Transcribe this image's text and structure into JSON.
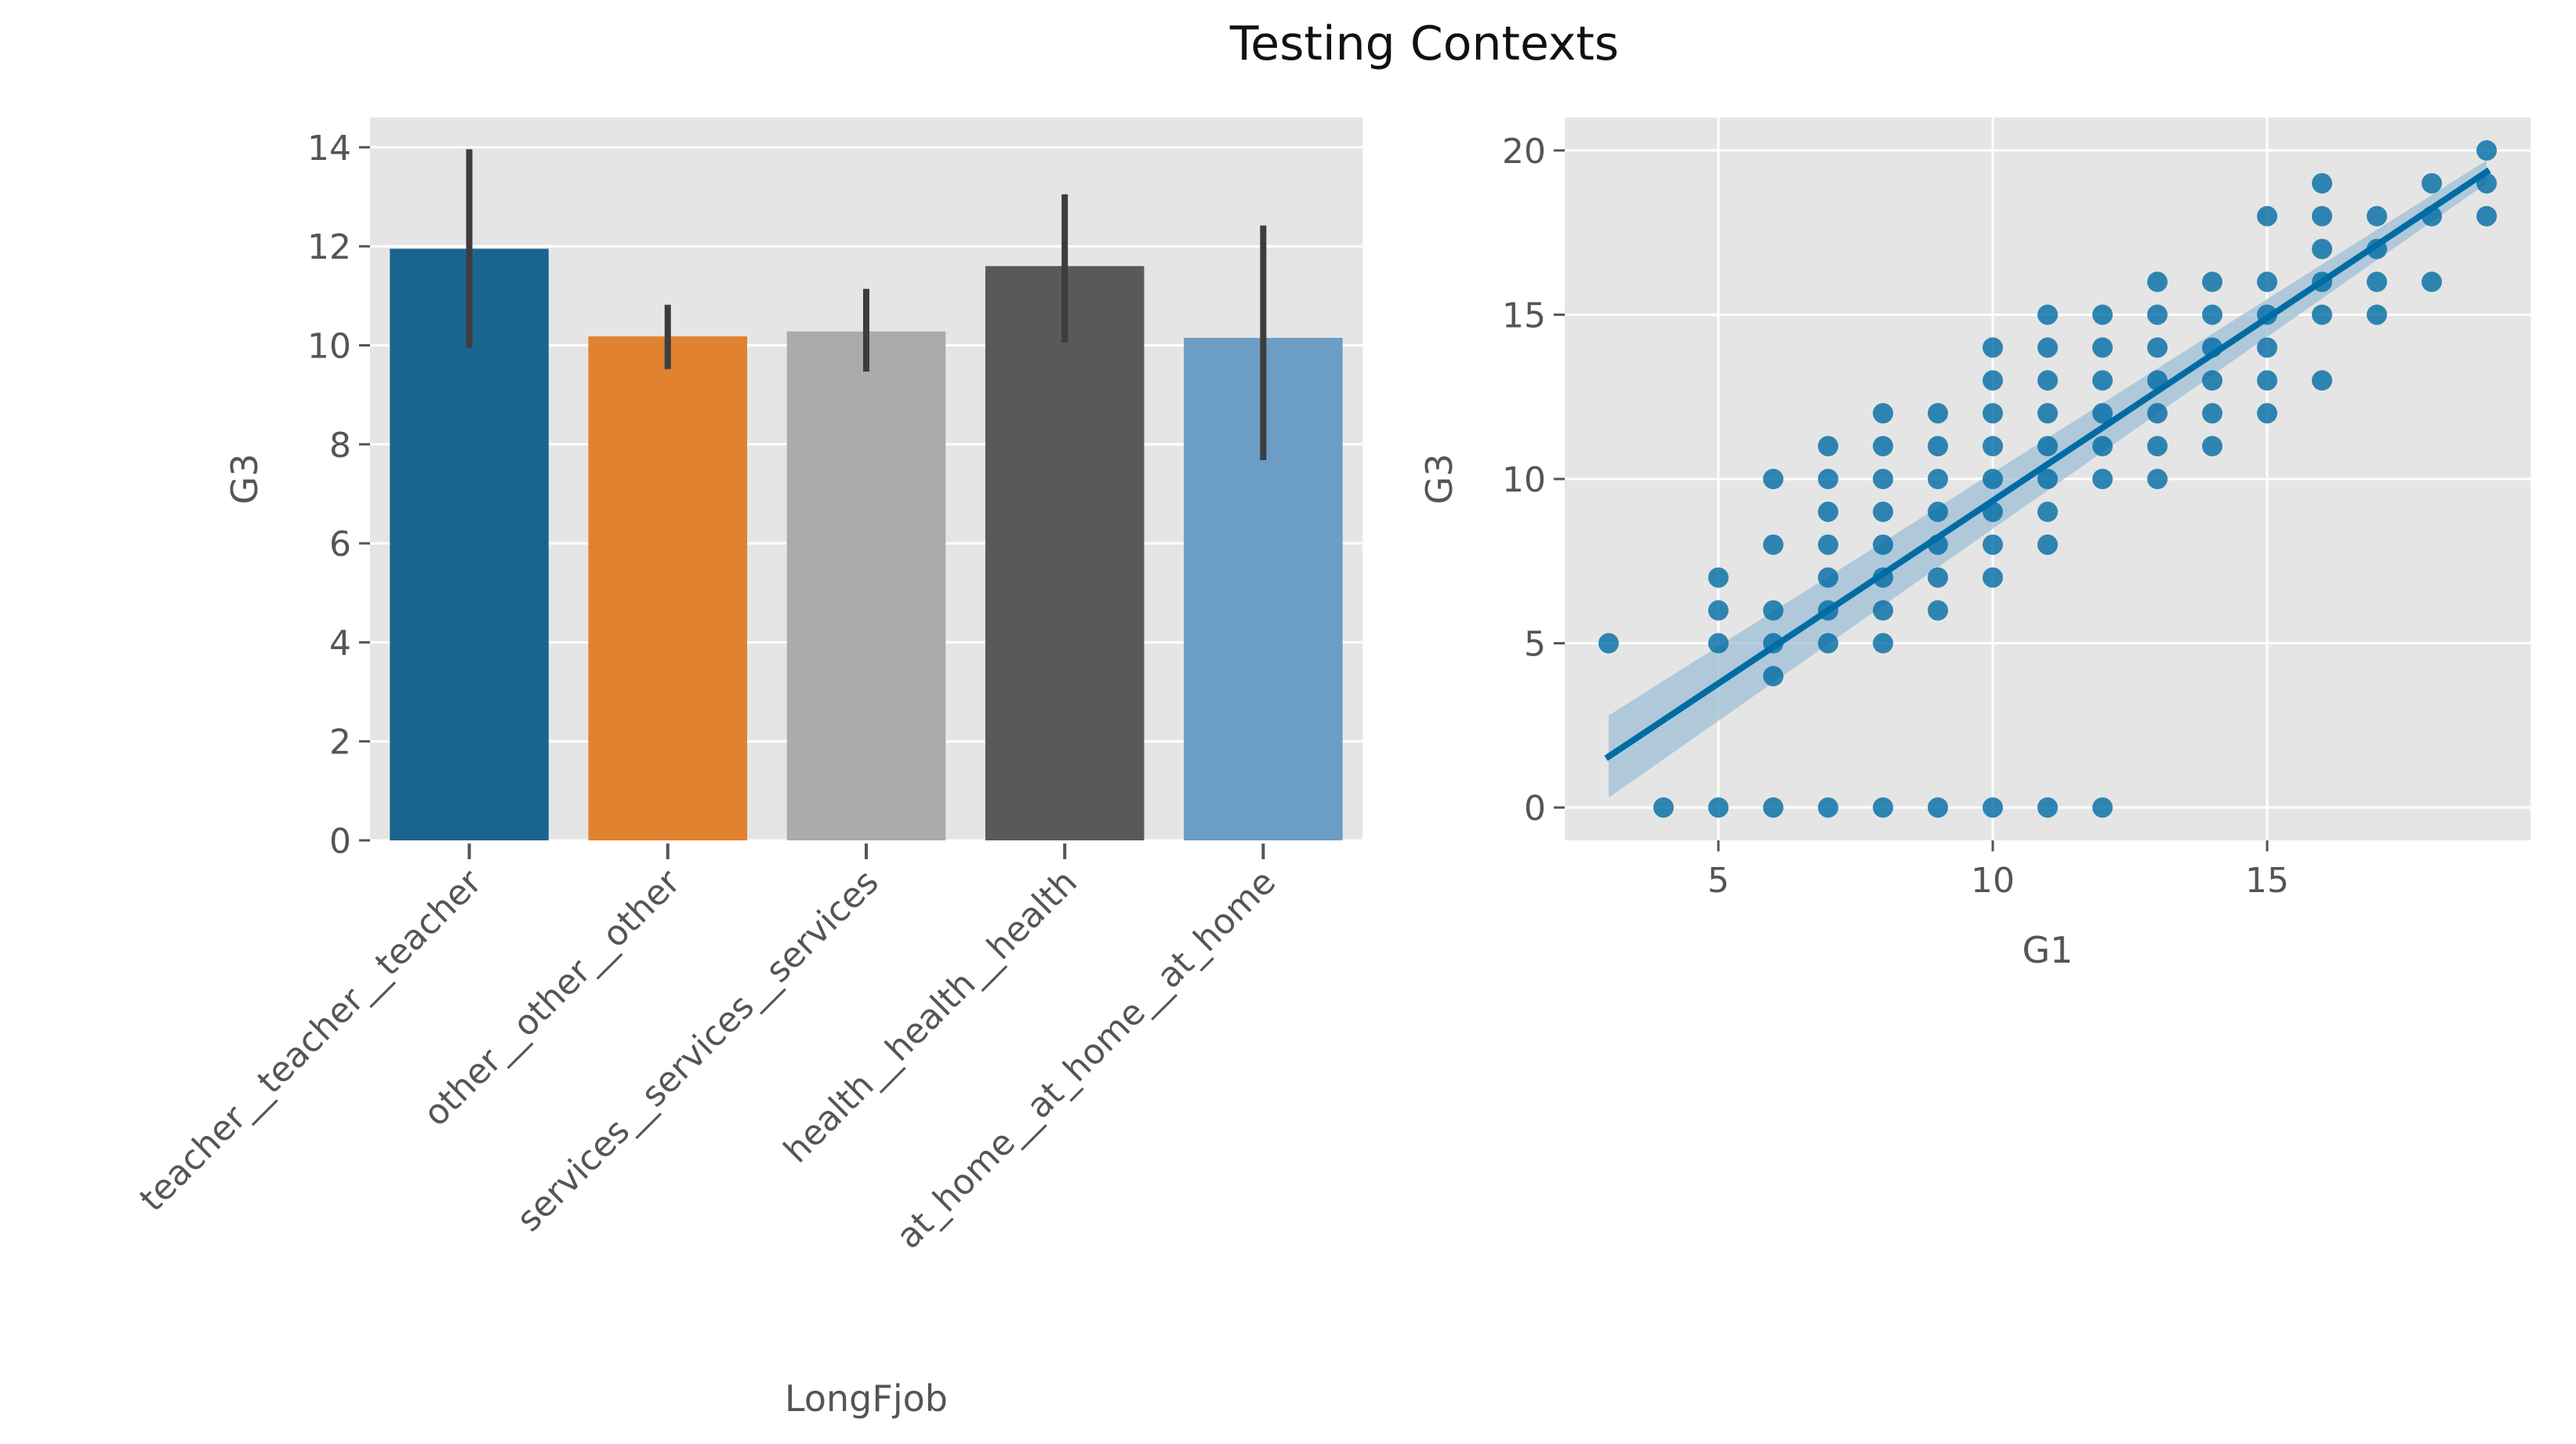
{
  "figure": {
    "title": "Testing Contexts"
  },
  "colors": {
    "panel_bg": "#e5e5e5",
    "grid": "#ffffff",
    "text": "#555555",
    "errorbar": "#3d3d3d",
    "scatter": "#006ba4",
    "fit_band": "#9ebfd6"
  },
  "chart_data": [
    {
      "type": "bar",
      "title": "",
      "xlabel": "LongFjob",
      "ylabel": "G3",
      "ylim": [
        0,
        14.6
      ],
      "yticks": [
        0,
        2,
        4,
        6,
        8,
        10,
        12,
        14
      ],
      "grid": true,
      "categories": [
        "teacher__teacher__teacher",
        "other__other__other",
        "services__services__services",
        "health__health__health",
        "at_home__at_home__at_home"
      ],
      "values": [
        11.95,
        10.18,
        10.28,
        11.6,
        10.15
      ],
      "error_low": [
        9.95,
        9.52,
        9.47,
        10.06,
        7.68
      ],
      "error_high": [
        13.96,
        10.82,
        11.14,
        13.05,
        12.42
      ],
      "bar_colors": [
        "#1a6590",
        "#e0822f",
        "#ababab",
        "#595959",
        "#6b9dc5"
      ]
    },
    {
      "type": "scatter",
      "title": "",
      "xlabel": "G1",
      "ylabel": "G3",
      "xlim": [
        2.2,
        19.8
      ],
      "ylim": [
        -1,
        21
      ],
      "xticks": [
        5,
        10,
        15
      ],
      "yticks": [
        0,
        5,
        10,
        15,
        20
      ],
      "grid": true,
      "points": [
        [
          3,
          5
        ],
        [
          4,
          0
        ],
        [
          5,
          0
        ],
        [
          6,
          0
        ],
        [
          7,
          0
        ],
        [
          8,
          0
        ],
        [
          9,
          0
        ],
        [
          10,
          0
        ],
        [
          11,
          0
        ],
        [
          12,
          0
        ],
        [
          5,
          5
        ],
        [
          5,
          6
        ],
        [
          5,
          7
        ],
        [
          6,
          4
        ],
        [
          6,
          5
        ],
        [
          6,
          6
        ],
        [
          6,
          8
        ],
        [
          6,
          10
        ],
        [
          7,
          5
        ],
        [
          7,
          6
        ],
        [
          7,
          7
        ],
        [
          7,
          8
        ],
        [
          7,
          9
        ],
        [
          7,
          10
        ],
        [
          7,
          11
        ],
        [
          8,
          5
        ],
        [
          8,
          6
        ],
        [
          8,
          7
        ],
        [
          8,
          8
        ],
        [
          8,
          9
        ],
        [
          8,
          10
        ],
        [
          8,
          11
        ],
        [
          8,
          12
        ],
        [
          9,
          6
        ],
        [
          9,
          7
        ],
        [
          9,
          8
        ],
        [
          9,
          9
        ],
        [
          9,
          10
        ],
        [
          9,
          11
        ],
        [
          9,
          12
        ],
        [
          10,
          7
        ],
        [
          10,
          8
        ],
        [
          10,
          9
        ],
        [
          10,
          10
        ],
        [
          10,
          11
        ],
        [
          10,
          12
        ],
        [
          10,
          13
        ],
        [
          10,
          14
        ],
        [
          11,
          8
        ],
        [
          11,
          9
        ],
        [
          11,
          10
        ],
        [
          11,
          11
        ],
        [
          11,
          12
        ],
        [
          11,
          13
        ],
        [
          11,
          14
        ],
        [
          11,
          15
        ],
        [
          12,
          10
        ],
        [
          12,
          11
        ],
        [
          12,
          12
        ],
        [
          12,
          13
        ],
        [
          12,
          14
        ],
        [
          12,
          15
        ],
        [
          13,
          10
        ],
        [
          13,
          11
        ],
        [
          13,
          12
        ],
        [
          13,
          13
        ],
        [
          13,
          14
        ],
        [
          13,
          15
        ],
        [
          13,
          16
        ],
        [
          14,
          11
        ],
        [
          14,
          12
        ],
        [
          14,
          13
        ],
        [
          14,
          14
        ],
        [
          14,
          15
        ],
        [
          14,
          16
        ],
        [
          15,
          12
        ],
        [
          15,
          13
        ],
        [
          15,
          14
        ],
        [
          15,
          15
        ],
        [
          15,
          16
        ],
        [
          15,
          18
        ],
        [
          16,
          13
        ],
        [
          16,
          15
        ],
        [
          16,
          16
        ],
        [
          16,
          17
        ],
        [
          16,
          18
        ],
        [
          16,
          19
        ],
        [
          17,
          15
        ],
        [
          17,
          16
        ],
        [
          17,
          17
        ],
        [
          17,
          18
        ],
        [
          18,
          16
        ],
        [
          18,
          18
        ],
        [
          18,
          19
        ],
        [
          19,
          18
        ],
        [
          19,
          19
        ],
        [
          19,
          20
        ]
      ],
      "regression": {
        "x": [
          3,
          19
        ],
        "y": [
          1.55,
          19.35
        ],
        "ci_low_y": [
          0.3,
          19.0
        ],
        "ci_high_y": [
          2.8,
          19.7
        ]
      }
    }
  ]
}
